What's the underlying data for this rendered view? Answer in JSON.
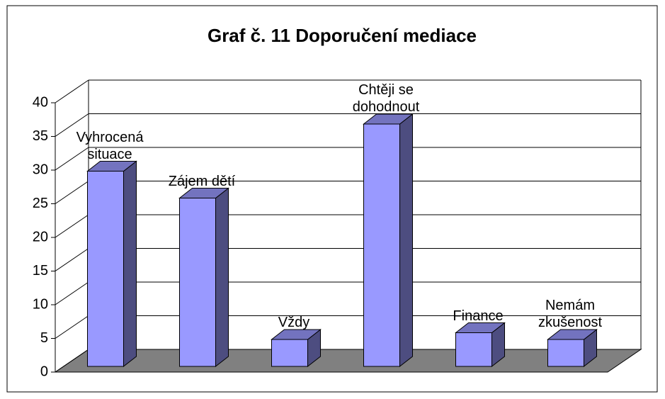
{
  "chart_data": {
    "type": "bar3d",
    "title": "Graf č. 11 Doporučení mediace",
    "categories": [
      "Vyhrocená situace",
      "Zájem dětí",
      "Vždy",
      "Chtěji se dohodnout",
      "Finance",
      "Nemám zkušenost"
    ],
    "values": [
      29,
      25,
      4,
      36,
      5,
      4
    ],
    "color": "#9999ff",
    "ylim": [
      0,
      40
    ],
    "yticks": [
      0,
      5,
      10,
      15,
      20,
      25,
      30,
      35,
      40
    ],
    "grid": true
  }
}
